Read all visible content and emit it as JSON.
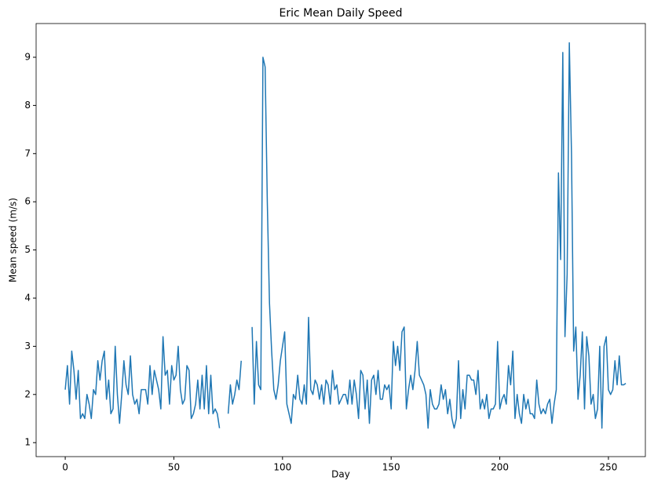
{
  "chart_data": {
    "type": "line",
    "title": "Eric Mean Daily Speed",
    "x_label": "Day",
    "y_label": "Mean speed (m/s)",
    "x": [
      0,
      1,
      2,
      3,
      4,
      5,
      6,
      7,
      8,
      9,
      10,
      11,
      12,
      13,
      14,
      15,
      16,
      17,
      18,
      19,
      20,
      21,
      22,
      23,
      24,
      25,
      26,
      27,
      28,
      29,
      30,
      31,
      32,
      33,
      34,
      35,
      36,
      37,
      38,
      39,
      40,
      41,
      42,
      43,
      44,
      45,
      46,
      47,
      48,
      49,
      50,
      51,
      52,
      53,
      54,
      55,
      56,
      57,
      58,
      59,
      60,
      61,
      62,
      63,
      64,
      65,
      66,
      67,
      68,
      69,
      70,
      71,
      72,
      73,
      74,
      75,
      76,
      77,
      78,
      79,
      80,
      81,
      82,
      83,
      84,
      85,
      86,
      87,
      88,
      89,
      90,
      91,
      92,
      93,
      94,
      95,
      96,
      97,
      98,
      99,
      100,
      101,
      102,
      103,
      104,
      105,
      106,
      107,
      108,
      109,
      110,
      111,
      112,
      113,
      114,
      115,
      116,
      117,
      118,
      119,
      120,
      121,
      122,
      123,
      124,
      125,
      126,
      127,
      128,
      129,
      130,
      131,
      132,
      133,
      134,
      135,
      136,
      137,
      138,
      139,
      140,
      141,
      142,
      143,
      144,
      145,
      146,
      147,
      148,
      149,
      150,
      151,
      152,
      153,
      154,
      155,
      156,
      157,
      158,
      159,
      160,
      161,
      162,
      163,
      164,
      165,
      166,
      167,
      168,
      169,
      170,
      171,
      172,
      173,
      174,
      175,
      176,
      177,
      178,
      179,
      180,
      181,
      182,
      183,
      184,
      185,
      186,
      187,
      188,
      189,
      190,
      191,
      192,
      193,
      194,
      195,
      196,
      197,
      198,
      199,
      200,
      201,
      202,
      203,
      204,
      205,
      206,
      207,
      208,
      209,
      210,
      211,
      212,
      213,
      214,
      215,
      216,
      217,
      218,
      219,
      220,
      221,
      222,
      223,
      224,
      225,
      226,
      227,
      228,
      229,
      230,
      231,
      232,
      233,
      234,
      235,
      236,
      237,
      238,
      239,
      240,
      241,
      242,
      243,
      244,
      245,
      246,
      247,
      248,
      249,
      250,
      251,
      252,
      253,
      254,
      255,
      256,
      257,
      258
    ],
    "series": [
      {
        "name": "Mean speed",
        "color": "#1f77b4",
        "values": [
          2.1,
          2.6,
          1.8,
          2.9,
          2.5,
          1.9,
          2.5,
          1.5,
          1.6,
          1.5,
          2.0,
          1.8,
          1.5,
          2.1,
          2.0,
          2.7,
          2.3,
          2.7,
          2.9,
          1.9,
          2.3,
          1.6,
          1.7,
          3.0,
          2.0,
          1.4,
          2.0,
          2.7,
          2.2,
          2.0,
          2.8,
          2.0,
          1.8,
          1.9,
          1.6,
          2.1,
          2.1,
          2.1,
          1.8,
          2.6,
          2.0,
          2.5,
          2.3,
          2.1,
          1.7,
          3.2,
          2.4,
          2.5,
          1.8,
          2.6,
          2.3,
          2.4,
          3.0,
          2.1,
          1.8,
          1.9,
          2.6,
          2.5,
          1.5,
          1.6,
          1.8,
          2.3,
          1.7,
          2.4,
          1.7,
          2.6,
          1.6,
          2.4,
          1.6,
          1.7,
          1.6,
          1.3,
          null,
          null,
          null,
          1.6,
          2.2,
          1.8,
          2.0,
          2.3,
          2.1,
          2.7,
          null,
          null,
          null,
          null,
          3.4,
          1.8,
          3.1,
          2.2,
          2.1,
          9.0,
          8.8,
          6.0,
          3.9,
          2.9,
          2.1,
          1.9,
          2.2,
          2.7,
          3.0,
          3.3,
          1.8,
          1.6,
          1.4,
          2.0,
          1.9,
          2.4,
          1.9,
          1.8,
          2.2,
          1.8,
          3.6,
          2.1,
          2.0,
          2.3,
          2.2,
          1.9,
          2.2,
          1.8,
          2.3,
          2.2,
          1.8,
          2.5,
          2.1,
          2.2,
          1.8,
          1.9,
          2.0,
          2.0,
          1.8,
          2.3,
          1.8,
          2.3,
          2.0,
          1.5,
          2.5,
          2.4,
          1.7,
          2.3,
          1.4,
          2.3,
          2.4,
          2.0,
          2.5,
          1.9,
          1.9,
          2.2,
          2.1,
          2.2,
          1.7,
          3.1,
          2.6,
          3.0,
          2.5,
          3.3,
          3.4,
          1.7,
          2.1,
          2.4,
          2.1,
          2.5,
          3.1,
          2.4,
          2.3,
          2.2,
          2.0,
          1.3,
          2.1,
          1.8,
          1.7,
          1.7,
          1.8,
          2.2,
          1.9,
          2.1,
          1.6,
          1.9,
          1.5,
          1.3,
          1.5,
          2.7,
          1.5,
          2.1,
          1.7,
          2.4,
          2.4,
          2.3,
          2.3,
          2.0,
          2.5,
          1.7,
          1.9,
          1.7,
          2.0,
          1.5,
          1.7,
          1.7,
          1.8,
          3.1,
          1.7,
          1.9,
          2.0,
          1.8,
          2.6,
          2.2,
          2.9,
          1.5,
          2.0,
          1.6,
          1.4,
          2.0,
          1.7,
          1.9,
          1.6,
          1.6,
          1.5,
          2.3,
          1.8,
          1.6,
          1.7,
          1.6,
          1.8,
          1.9,
          1.4,
          1.8,
          2.1,
          6.6,
          4.8,
          9.1,
          3.2,
          4.5,
          9.3,
          7.0,
          2.9,
          3.4,
          1.9,
          2.4,
          3.3,
          1.7,
          3.2,
          2.8,
          1.8,
          2.0,
          1.5,
          1.7,
          3.0,
          1.3,
          3.0,
          3.2,
          2.1,
          2.0,
          2.1,
          2.7,
          2.2,
          2.8,
          2.2,
          2.2,
          2.23
        ]
      }
    ],
    "xlim": [
      -13.4,
      267
    ],
    "ylim": [
      0.71,
      9.7
    ],
    "xticks": [
      0,
      50,
      100,
      150,
      200,
      250
    ],
    "yticks": [
      1,
      2,
      3,
      4,
      5,
      6,
      7,
      8,
      9
    ],
    "grid": false
  }
}
